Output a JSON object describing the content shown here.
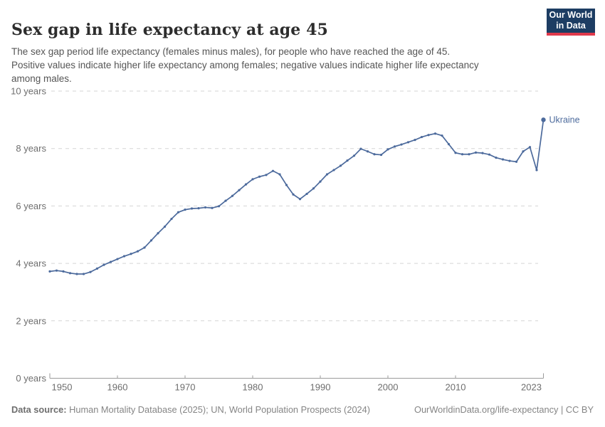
{
  "header": {
    "title": "Sex gap in life expectancy at age 45",
    "subtitle_lines": [
      "The sex gap period life expectancy (females minus males), for people who have reached the age of 45.",
      "Positive values indicate higher life expectancy among females; negative values indicate higher life expectancy",
      "among males."
    ],
    "logo": {
      "line1": "Our World",
      "line2": "in Data",
      "bg_color": "#1d3d63",
      "bar_color": "#e0394b"
    }
  },
  "footer": {
    "source_label": "Data source:",
    "source_text": " Human Mortality Database (2025); UN, World Population Prospects (2024)",
    "link_text": "OurWorldinData.org/life-expectancy | CC BY"
  },
  "chart_data": {
    "type": "line",
    "title": "Sex gap in life expectancy at age 45",
    "entity": "Ukraine",
    "end_label": "Ukraine",
    "line_color": "#4c6a9c",
    "grid": "horizontal-dashed",
    "xlim": [
      1950,
      2023
    ],
    "ylim": [
      0,
      10
    ],
    "x_ticks": [
      1950,
      1960,
      1970,
      1980,
      1990,
      2000,
      2010,
      2023
    ],
    "y_ticks": [
      {
        "value": 0,
        "label": "0 years"
      },
      {
        "value": 2,
        "label": "2 years"
      },
      {
        "value": 4,
        "label": "4 years"
      },
      {
        "value": 6,
        "label": "6 years"
      },
      {
        "value": 8,
        "label": "8 years"
      },
      {
        "value": 10,
        "label": "10 years"
      }
    ],
    "series": [
      {
        "name": "Ukraine",
        "x": [
          1950,
          1951,
          1952,
          1953,
          1954,
          1955,
          1956,
          1957,
          1958,
          1959,
          1960,
          1961,
          1962,
          1963,
          1964,
          1965,
          1966,
          1967,
          1968,
          1969,
          1970,
          1971,
          1972,
          1973,
          1974,
          1975,
          1976,
          1977,
          1978,
          1979,
          1980,
          1981,
          1982,
          1983,
          1984,
          1985,
          1986,
          1987,
          1988,
          1989,
          1990,
          1991,
          1992,
          1993,
          1994,
          1995,
          1996,
          1997,
          1998,
          1999,
          2000,
          2001,
          2002,
          2003,
          2004,
          2005,
          2006,
          2007,
          2008,
          2009,
          2010,
          2011,
          2012,
          2013,
          2014,
          2015,
          2016,
          2017,
          2018,
          2019,
          2020,
          2021,
          2022,
          2023
        ],
        "values": [
          3.72,
          3.75,
          3.72,
          3.66,
          3.63,
          3.63,
          3.7,
          3.82,
          3.95,
          4.05,
          4.15,
          4.25,
          4.33,
          4.42,
          4.55,
          4.8,
          5.05,
          5.28,
          5.55,
          5.78,
          5.87,
          5.91,
          5.92,
          5.95,
          5.93,
          5.99,
          6.18,
          6.35,
          6.55,
          6.75,
          6.93,
          7.02,
          7.08,
          7.22,
          7.1,
          6.73,
          6.4,
          6.24,
          6.42,
          6.61,
          6.85,
          7.1,
          7.25,
          7.4,
          7.58,
          7.75,
          7.99,
          7.9,
          7.8,
          7.78,
          7.97,
          8.07,
          8.14,
          8.22,
          8.3,
          8.4,
          8.47,
          8.52,
          8.45,
          8.15,
          7.85,
          7.8,
          7.8,
          7.86,
          7.84,
          7.79,
          7.68,
          7.62,
          7.57,
          7.54,
          7.9,
          8.05,
          7.25,
          9.0
        ]
      }
    ]
  }
}
